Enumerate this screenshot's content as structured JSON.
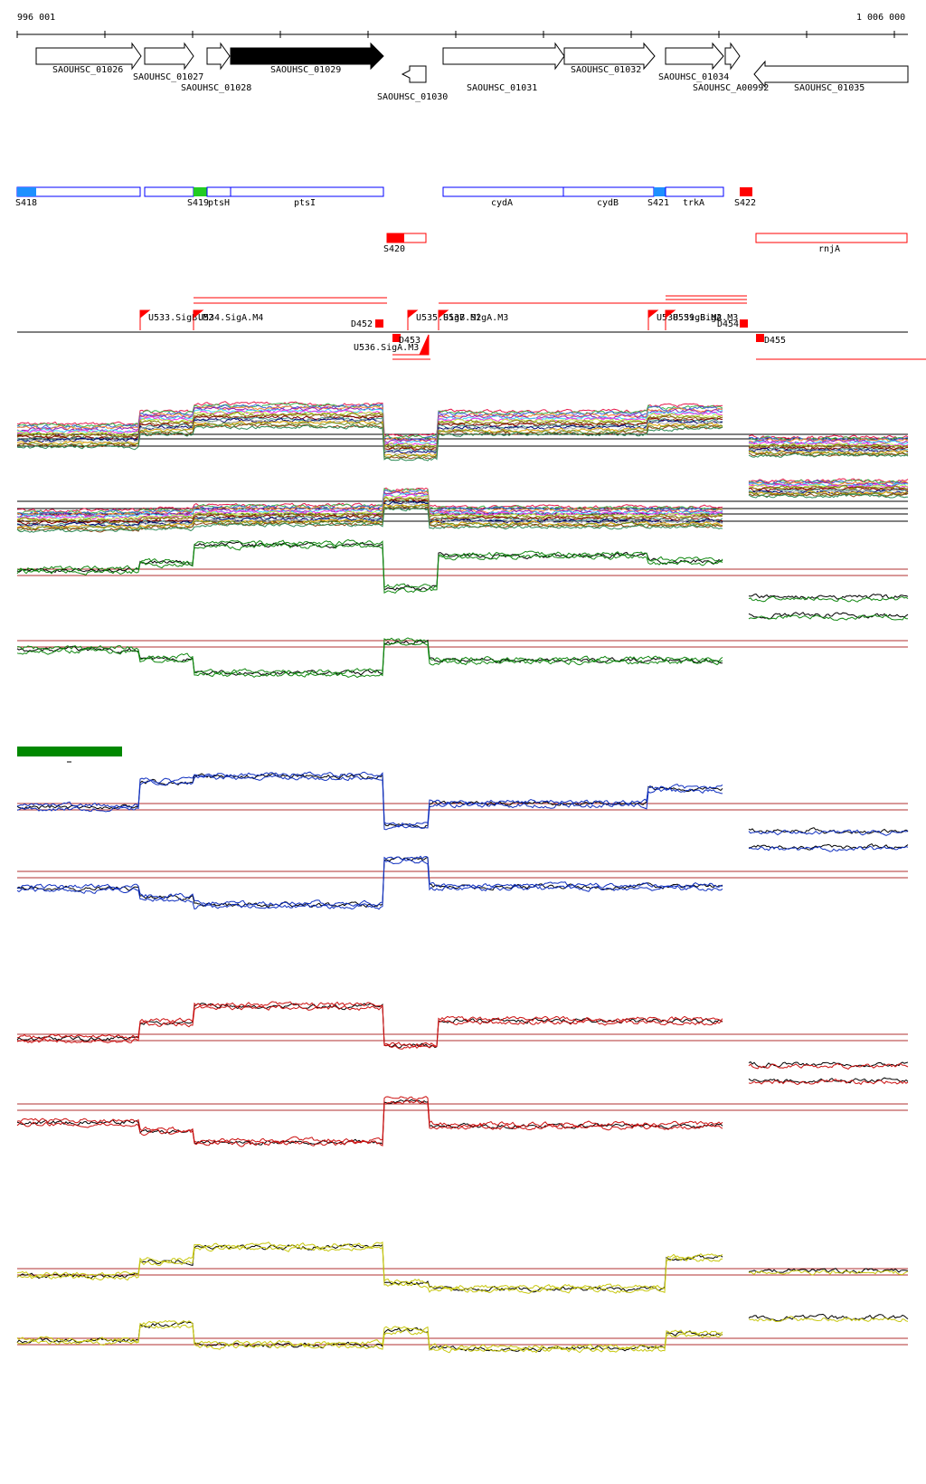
{
  "coords": {
    "start_label": "996 001",
    "end_label": "1 006 000"
  },
  "genes": [
    {
      "label": "SAOUHSC_01026",
      "strand": "+",
      "filled": false
    },
    {
      "label": "SAOUHSC_01027",
      "strand": "+",
      "filled": false
    },
    {
      "label": "SAOUHSC_01028",
      "strand": "+",
      "filled": false
    },
    {
      "label": "SAOUHSC_01029",
      "strand": "+",
      "filled": true
    },
    {
      "label": "SAOUHSC_01030",
      "strand": "-",
      "filled": false
    },
    {
      "label": "SAOUHSC_01031",
      "strand": "+",
      "filled": false
    },
    {
      "label": "SAOUHSC_01032",
      "strand": "+",
      "filled": false
    },
    {
      "label": "SAOUHSC_01034",
      "strand": "+",
      "filled": false
    },
    {
      "label": "SAOUHSC_A00992",
      "strand": "+",
      "filled": false
    },
    {
      "label": "SAOUHSC_01035",
      "strand": "-",
      "filled": false
    }
  ],
  "segments": [
    {
      "label": "S418",
      "color": "#1e90ff"
    },
    {
      "label": "S419",
      "color": "#22cc22"
    },
    {
      "label": "ptsH",
      "color": ""
    },
    {
      "label": "ptsI",
      "color": ""
    },
    {
      "label": "cydA",
      "color": ""
    },
    {
      "label": "cydB",
      "color": ""
    },
    {
      "label": "S421",
      "color": "#1e90ff"
    },
    {
      "label": "trkA",
      "color": ""
    },
    {
      "label": "S422",
      "color": "#ff0000"
    },
    {
      "label": "S420",
      "color": "#ff0000"
    },
    {
      "label": "rnjA",
      "color": ""
    }
  ],
  "features": [
    {
      "label": "U533.SigB.M2"
    },
    {
      "label": "U534.SigA.M4"
    },
    {
      "label": "D452"
    },
    {
      "label": "D453"
    },
    {
      "label": "U536.SigA.M3"
    },
    {
      "label": "U535.SigB.M2"
    },
    {
      "label": "U537.SigA.M3"
    },
    {
      "label": "U538.SigB.M2"
    },
    {
      "label": "U539.SigA.M3"
    },
    {
      "label": "D454"
    },
    {
      "label": "D455"
    }
  ],
  "track_colors": {
    "green": "#118811",
    "blue": "#1030c0",
    "red": "#cc1010",
    "yellow": "#c8c810",
    "legend_bar": "#008800",
    "reference_line": "#b03030"
  }
}
